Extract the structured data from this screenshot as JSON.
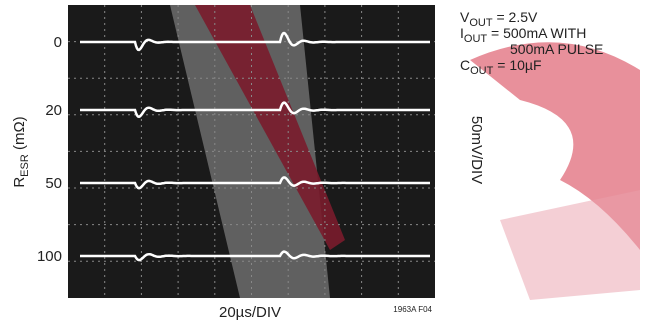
{
  "y_axis_label": {
    "symbol": "R",
    "subscript": "ESR",
    "unit": " (mΩ)"
  },
  "traces": [
    {
      "label": 0
    },
    {
      "label": 20
    },
    {
      "label": 50
    },
    {
      "label": 100
    }
  ],
  "x_axis_label": "20µs/DIV",
  "side_label": "50mV/DIV",
  "conditions": [
    {
      "symbol": "V",
      "subscript": "OUT",
      "text": " = 2.5V"
    },
    {
      "symbol": "I",
      "subscript": "OUT",
      "text": " = 500mA WITH",
      "continuation": "500mA PULSE"
    },
    {
      "symbol": "C",
      "subscript": "OUT",
      "text": " = 10µF"
    }
  ],
  "figure_id": "1963A F04"
}
